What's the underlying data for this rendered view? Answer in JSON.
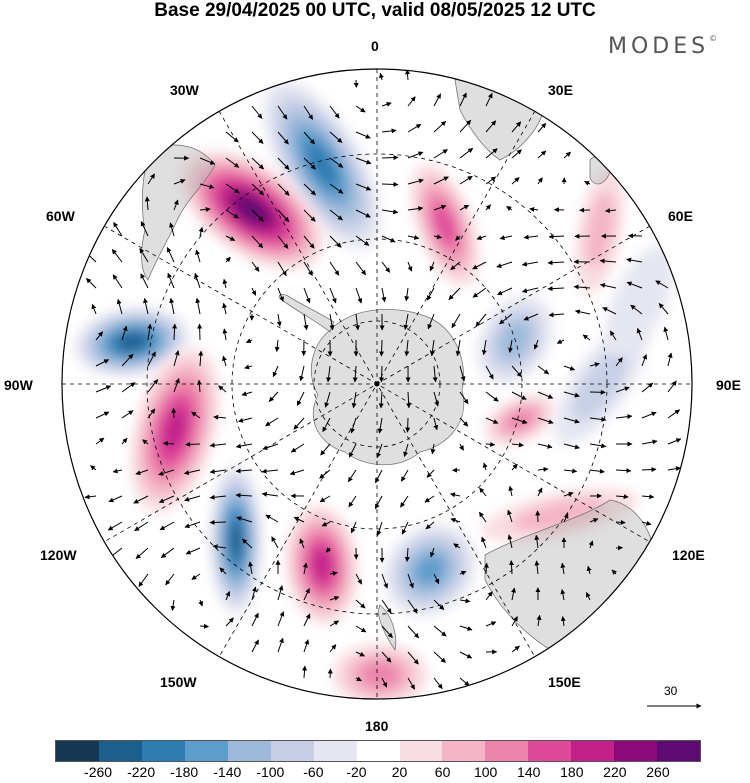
{
  "title": "Base 29/04/2025 00 UTC, valid 08/05/2025 12 UTC",
  "brand": "MODES",
  "brand_mark": "©",
  "longitude_labels": {
    "top": "0",
    "top_right": "30E",
    "upper_right": "60E",
    "right": "90E",
    "lower_right": "120E",
    "bottom_right": "150E",
    "bottom": "180",
    "bottom_left": "150W",
    "lower_left": "120W",
    "left": "90W",
    "upper_left": "60W",
    "top_left": "30W"
  },
  "reference_vector_label": "30",
  "colorbar": {
    "colors": [
      "#17364f",
      "#1b5f8a",
      "#2f7cb3",
      "#5d9dcb",
      "#9dbadb",
      "#c6cfe6",
      "#e6e6f2",
      "#ffffff",
      "#f9dde2",
      "#f4b5c6",
      "#ec84ac",
      "#e0489a",
      "#c3208a",
      "#8c0a78",
      "#5d0a72"
    ],
    "tick_labels": [
      "-260",
      "-220",
      "-180",
      "-140",
      "-100",
      "-60",
      "-20",
      "20",
      "60",
      "100",
      "140",
      "180",
      "220",
      "260"
    ]
  },
  "anomaly_cells": [
    {
      "sign": "negative",
      "peak": -220
    },
    {
      "sign": "positive",
      "peak": 260
    },
    {
      "sign": "negative",
      "peak": -260
    },
    {
      "sign": "positive",
      "peak": 180
    },
    {
      "sign": "negative",
      "peak": -260
    },
    {
      "sign": "positive",
      "peak": 180
    },
    {
      "sign": "negative",
      "peak": -180
    },
    {
      "sign": "positive",
      "peak": 100
    },
    {
      "sign": "positive",
      "peak": 140
    },
    {
      "sign": "negative",
      "peak": -140
    },
    {
      "sign": "positive",
      "peak": 100
    },
    {
      "sign": "negative",
      "peak": -100
    },
    {
      "sign": "positive",
      "peak": 60
    },
    {
      "sign": "negative",
      "peak": -60
    },
    {
      "sign": "positive",
      "peak": 60
    }
  ]
}
